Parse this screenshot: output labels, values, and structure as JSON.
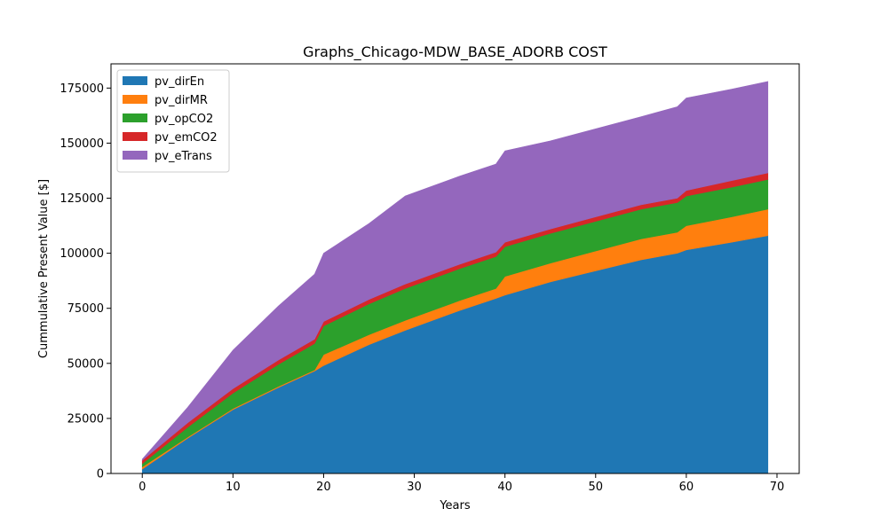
{
  "chart_data": {
    "type": "area",
    "stacked": true,
    "title": "Graphs_Chicago-MDW_BASE_ADORB COST",
    "xlabel": "Years",
    "ylabel": "Cummulative Present Value [$]",
    "xlim": [
      -3.45,
      72.45
    ],
    "ylim": [
      0,
      186000
    ],
    "xticks": [
      0,
      10,
      20,
      30,
      40,
      50,
      60,
      70
    ],
    "yticks": [
      0,
      25000,
      50000,
      75000,
      100000,
      125000,
      150000,
      175000
    ],
    "grid": false,
    "legend_position": "top-left",
    "x": [
      0,
      5,
      10,
      15,
      19,
      20,
      25,
      29,
      30,
      35,
      39,
      40,
      45,
      50,
      55,
      59,
      60,
      65,
      69
    ],
    "series": [
      {
        "name": "pv_dirEn",
        "color": "#1f77b4",
        "values": [
          2000,
          16000,
          29000,
          39000,
          46500,
          49000,
          58500,
          65000,
          66500,
          74000,
          79500,
          81000,
          87000,
          92000,
          97000,
          100000,
          101500,
          105000,
          108000
        ]
      },
      {
        "name": "pv_dirMR",
        "color": "#ff7f0e",
        "values": [
          1000,
          500,
          500,
          500,
          500,
          5000,
          4500,
          4500,
          4500,
          4500,
          4500,
          8500,
          8500,
          9000,
          9500,
          9500,
          11000,
          11500,
          12000
        ]
      },
      {
        "name": "pv_opCO2",
        "color": "#2ca02c",
        "values": [
          1500,
          4500,
          7000,
          10000,
          12000,
          13000,
          14000,
          14500,
          14500,
          14500,
          14500,
          13500,
          13500,
          13500,
          13500,
          13500,
          13500,
          13500,
          13500
        ]
      },
      {
        "name": "pv_emCO2",
        "color": "#d62728",
        "values": [
          1500,
          2000,
          2000,
          2000,
          2000,
          2000,
          2000,
          2000,
          2000,
          2000,
          2000,
          2000,
          2000,
          2000,
          2000,
          2000,
          2500,
          3000,
          3000
        ]
      },
      {
        "name": "pv_eTrans",
        "color": "#9467bd",
        "values": [
          500,
          7000,
          17500,
          24500,
          29500,
          31000,
          34500,
          40000,
          40000,
          40000,
          40000,
          41500,
          40000,
          40000,
          40000,
          41500,
          42000,
          41500,
          41500
        ]
      }
    ]
  }
}
